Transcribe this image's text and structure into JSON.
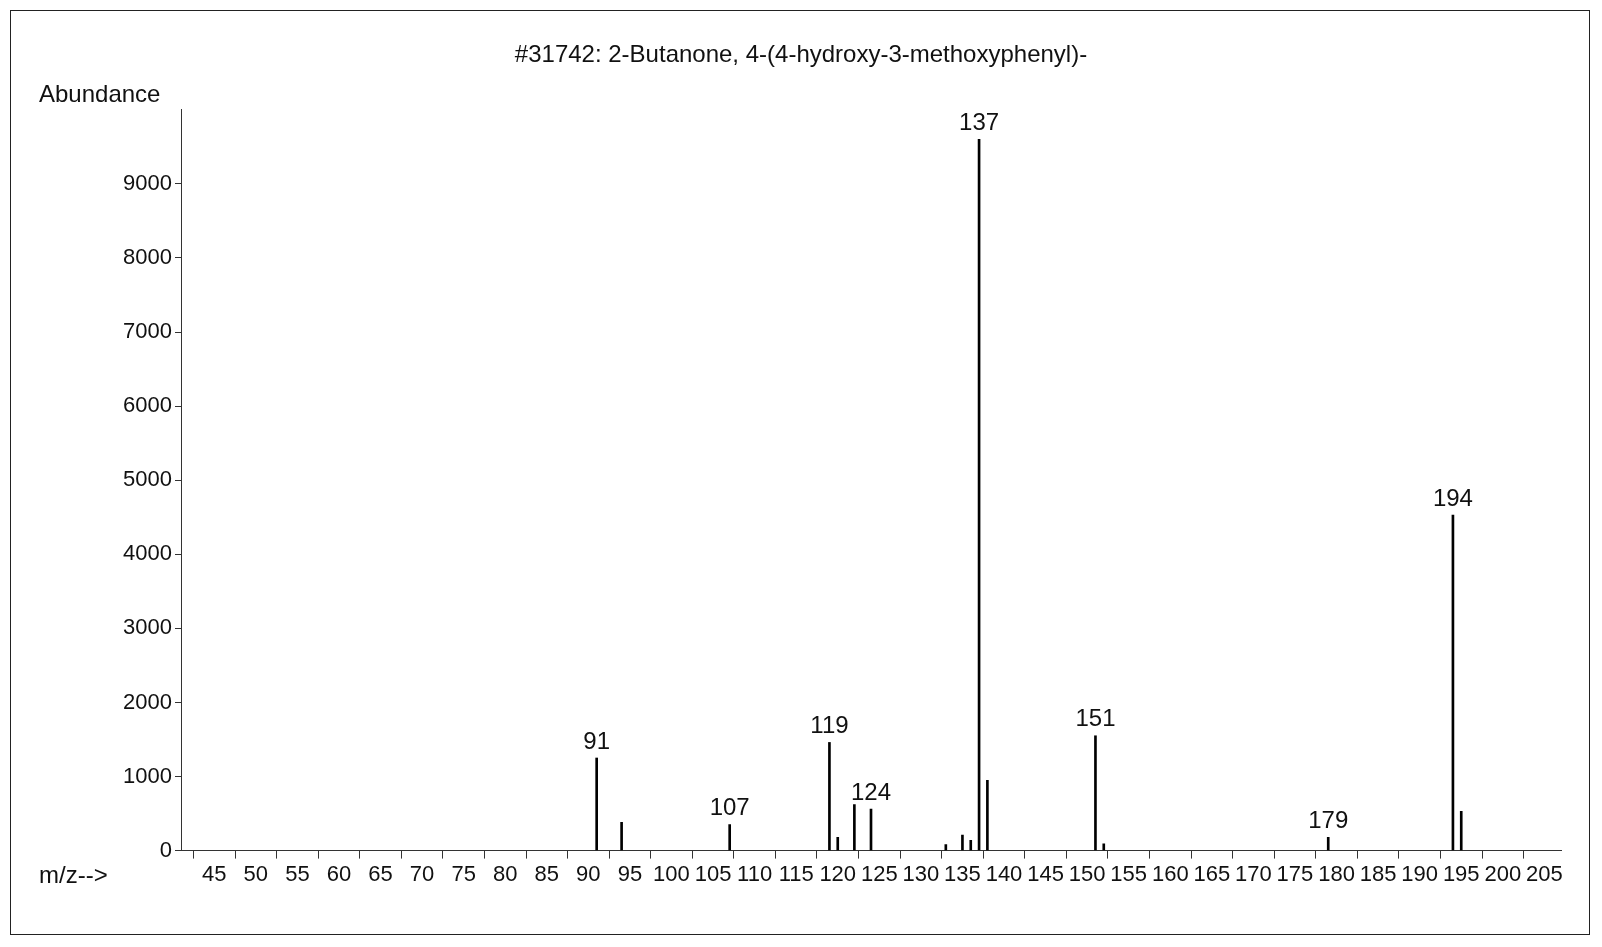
{
  "chart_data": {
    "type": "bar",
    "title": "#31742: 2-Butanone, 4-(4-hydroxy-3-methoxyphenyl)-",
    "xlabel": "m/z-->",
    "ylabel": "Abundance",
    "x": [
      91,
      94,
      107,
      119,
      120,
      122,
      124,
      133,
      135,
      136,
      137,
      138,
      151,
      152,
      179,
      194,
      195
    ],
    "values": [
      1250,
      380,
      350,
      1460,
      180,
      620,
      560,
      80,
      210,
      140,
      9600,
      950,
      1550,
      90,
      180,
      4530,
      530
    ],
    "color": "#000000",
    "xlim": [
      41,
      207
    ],
    "xticks": [
      45,
      50,
      55,
      60,
      65,
      70,
      75,
      80,
      85,
      90,
      95,
      100,
      105,
      110,
      115,
      120,
      125,
      130,
      135,
      140,
      145,
      150,
      155,
      160,
      165,
      170,
      175,
      180,
      185,
      190,
      195,
      200,
      205
    ],
    "ylim": [
      0,
      10000
    ],
    "yticks": [
      0,
      1000,
      2000,
      3000,
      4000,
      5000,
      6000,
      7000,
      8000,
      9000
    ],
    "annotations": [
      {
        "text": "91",
        "x": 91,
        "y": 1250
      },
      {
        "text": "107",
        "x": 107,
        "y": 350
      },
      {
        "text": "119",
        "x": 119,
        "y": 1460
      },
      {
        "text": "124",
        "x": 124,
        "y": 560
      },
      {
        "text": "137",
        "x": 137,
        "y": 9600
      },
      {
        "text": "151",
        "x": 151,
        "y": 1550
      },
      {
        "text": "179",
        "x": 179,
        "y": 180
      },
      {
        "text": "194",
        "x": 194,
        "y": 4530
      }
    ]
  }
}
